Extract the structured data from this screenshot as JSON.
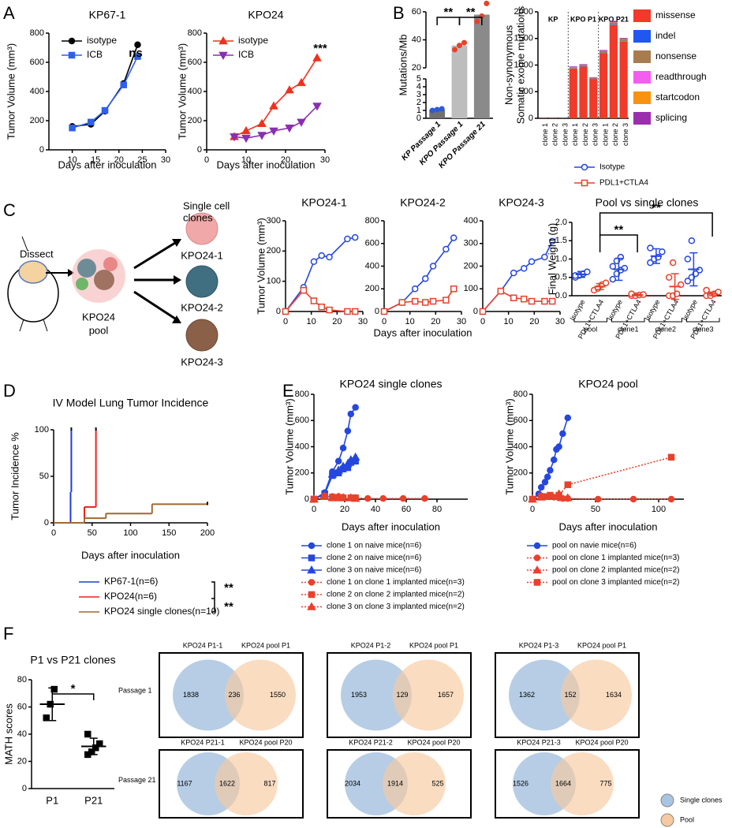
{
  "panels": [
    "A",
    "B",
    "C",
    "D",
    "E",
    "F"
  ],
  "chart_data": [
    {
      "type": "line",
      "title": "KP67-1",
      "xlabel": "Days after inoculation",
      "ylabel": "Tumor Volume (mm³)",
      "x": [
        10,
        14,
        17,
        21,
        24
      ],
      "xlim": [
        5,
        30
      ],
      "xticks": [
        10,
        15,
        20,
        25,
        30
      ],
      "ylim": [
        0,
        800
      ],
      "yticks": [
        0,
        200,
        400,
        600,
        800
      ],
      "series": [
        {
          "name": "isotype",
          "color": "#000000",
          "marker": "circle",
          "values": [
            160,
            175,
            265,
            455,
            720
          ]
        },
        {
          "name": "ICB",
          "color": "#2f5ff0",
          "marker": "square",
          "values": [
            150,
            190,
            270,
            445,
            640
          ]
        }
      ],
      "annotations": [
        "ns"
      ]
    },
    {
      "type": "line",
      "title": "KPO24",
      "xlabel": "Days after inoculation",
      "ylabel": "Tumor Volume (mm³)",
      "x": [
        7,
        10,
        14,
        17,
        21,
        24,
        28
      ],
      "xlim": [
        0,
        30
      ],
      "xticks": [
        0,
        10,
        20,
        30
      ],
      "ylim": [
        0,
        800
      ],
      "yticks": [
        0,
        200,
        400,
        600,
        800
      ],
      "series": [
        {
          "name": "isotype",
          "color": "#f0301e",
          "marker": "triangle",
          "values": [
            90,
            130,
            180,
            300,
            410,
            460,
            630
          ]
        },
        {
          "name": "ICB",
          "color": "#8a2fb0",
          "marker": "triangle-down",
          "values": [
            90,
            80,
            100,
            130,
            150,
            190,
            300
          ]
        }
      ],
      "annotations": [
        "***"
      ]
    },
    {
      "type": "bar",
      "ylabel": "Mutations/Mb",
      "categories": [
        "KP Passage 1",
        "KPO Passage 1",
        "KPO Passage 21"
      ],
      "values": [
        1.1,
        36,
        58
      ],
      "points": [
        [
          1.0,
          1.1,
          1.2
        ],
        [
          33,
          36,
          38
        ],
        [
          53,
          57,
          66
        ]
      ],
      "colors": [
        "#707070",
        "#bdbdbd",
        "#8a8a8a"
      ],
      "point_colors": [
        "#2d5bd6",
        "#e8412c",
        "#e8412c"
      ],
      "ylim": [
        0,
        60
      ],
      "yticks": [
        0,
        1,
        2,
        3,
        4,
        5,
        20,
        40,
        60
      ],
      "annotations": [
        "**",
        "**"
      ]
    },
    {
      "type": "stacked_bar",
      "ylabel": [
        "Non-synonymous",
        "Somatic exome mutations"
      ],
      "categories": [
        "clone 1",
        "clone 2",
        "clone 3",
        "clone 1",
        "clone 2",
        "clone 3",
        "clone 1",
        "clone 2",
        "clone 3"
      ],
      "groups": [
        "KP",
        "KPO P1",
        "KPO P21"
      ],
      "ylim": [
        0,
        2000
      ],
      "yticks": [
        0,
        500,
        1000,
        1500,
        2000
      ],
      "series": [
        {
          "name": "missense",
          "color": "#f03a2a",
          "values": [
            3,
            3,
            3,
            930,
            970,
            735,
            1220,
            1750,
            1440
          ]
        },
        {
          "name": "indel",
          "color": "#1f57f0",
          "values": [
            0,
            0,
            0,
            6,
            6,
            5,
            8,
            10,
            8
          ]
        },
        {
          "name": "nonsense",
          "color": "#a87c4f",
          "values": [
            1,
            1,
            1,
            22,
            24,
            18,
            30,
            40,
            35
          ]
        },
        {
          "name": "readthrough",
          "color": "#f35ef0",
          "values": [
            0,
            0,
            0,
            2,
            2,
            2,
            3,
            3,
            3
          ]
        },
        {
          "name": "startcodon",
          "color": "#f7930f",
          "values": [
            0,
            0,
            0,
            2,
            2,
            2,
            3,
            3,
            3
          ]
        },
        {
          "name": "splicing",
          "color": "#9b2fae",
          "values": [
            1,
            1,
            1,
            12,
            13,
            10,
            18,
            24,
            20
          ]
        }
      ]
    },
    {
      "type": "line",
      "title": "KPO24-1",
      "ylabel": "Tumor Volume (mm³)",
      "x": [
        0,
        7,
        11,
        14,
        17,
        24,
        27
      ],
      "xlim": [
        0,
        30
      ],
      "xticks": [
        0,
        10,
        20,
        30
      ],
      "ylim": [
        0,
        300
      ],
      "yticks": [
        0,
        100,
        200,
        300
      ],
      "series": [
        {
          "name": "Isotype",
          "color": "#2547e0",
          "marker": "circle-open",
          "values": [
            0,
            80,
            165,
            185,
            180,
            240,
            245
          ]
        },
        {
          "name": "PDL1+CTLA4",
          "color": "#e8412c",
          "marker": "square-open",
          "values": [
            0,
            70,
            35,
            15,
            5,
            0,
            0
          ]
        }
      ]
    },
    {
      "type": "line",
      "title": "KPO24-2",
      "xlabel": "Days after inoculation",
      "x": [
        0,
        7,
        12,
        16,
        19,
        24,
        27
      ],
      "xlim": [
        0,
        30
      ],
      "xticks": [
        0,
        10,
        20,
        30
      ],
      "ylim": [
        0,
        800
      ],
      "yticks": [
        0,
        200,
        400,
        600,
        800
      ],
      "series": [
        {
          "color": "#2547e0",
          "marker": "circle-open",
          "values": [
            0,
            80,
            200,
            290,
            400,
            550,
            650
          ]
        },
        {
          "color": "#e8412c",
          "marker": "square-open",
          "values": [
            0,
            80,
            90,
            80,
            90,
            100,
            200
          ]
        }
      ]
    },
    {
      "type": "line",
      "title": "KPO24-3",
      "x": [
        0,
        7,
        12,
        16,
        19,
        24,
        27
      ],
      "xlim": [
        0,
        30
      ],
      "xticks": [
        0,
        10,
        20,
        30
      ],
      "ylim": [
        0,
        400
      ],
      "yticks": [
        0,
        100,
        200,
        300,
        400
      ],
      "series": [
        {
          "color": "#2547e0",
          "marker": "circle-open",
          "values": [
            0,
            90,
            170,
            190,
            220,
            240,
            310
          ]
        },
        {
          "color": "#e8412c",
          "marker": "square-open",
          "values": [
            0,
            90,
            60,
            55,
            45,
            45,
            45
          ]
        }
      ]
    },
    {
      "type": "dot",
      "title": "Pool vs single clones",
      "ylabel": "Final Weight (g)",
      "categories": [
        "Isotype",
        "PDL1+CTLA4",
        "Isotype",
        "PDL1+CTLA4",
        "Isotype",
        "PDL1+CTLA4",
        "Isotype",
        "PDL1+CTLA4"
      ],
      "groups": [
        "pool",
        "clone1",
        "clone2",
        "clone3"
      ],
      "values": [
        0.58,
        0.25,
        0.72,
        0.02,
        1.08,
        0.25,
        0.72,
        0.05
      ],
      "errors": [
        0.08,
        0.08,
        0.3,
        0.02,
        0.2,
        0.35,
        0.45,
        0.05
      ],
      "points": [
        [
          0.5,
          0.55,
          0.6,
          0.65,
          0.55
        ],
        [
          0.15,
          0.2,
          0.3,
          0.35
        ],
        [
          0.45,
          0.6,
          0.7,
          0.75,
          0.8,
          0.95,
          1.05
        ],
        [
          0,
          0,
          0.02,
          0.03,
          0.05
        ],
        [
          0.9,
          1.0,
          1.05,
          1.2,
          1.3
        ],
        [
          0,
          0,
          0.05,
          0.3,
          0.5,
          0.9
        ],
        [
          0.4,
          0.5,
          0.6,
          0.7,
          1.0,
          1.5
        ],
        [
          0,
          0,
          0.05,
          0.1,
          0.15
        ]
      ],
      "colors": [
        "#2547e0",
        "#e8412c"
      ],
      "marker": "circle-open",
      "ylim": [
        0,
        2
      ],
      "yticks": [
        {
          "value": 0,
          "label": "0.0"
        },
        0.5,
        {
          "value": 1,
          "label": "1.0"
        },
        1.5,
        {
          "value": 2,
          "label": "2.0"
        }
      ],
      "annotations": [
        "**",
        "**"
      ]
    },
    {
      "type": "step",
      "title": "IV Model Lung Tumor Incidence",
      "xlabel": "Days after inoculation",
      "ylabel": "Tumor Incidence %",
      "xlim": [
        0,
        200
      ],
      "xticks": [
        0,
        50,
        100,
        150,
        200
      ],
      "ylim": [
        0,
        100
      ],
      "yticks": [
        0,
        50,
        100
      ],
      "series": [
        {
          "name": "KP67-1(n=6)",
          "color": "#1f3fd6",
          "x": [
            0,
            22,
            23
          ],
          "values": [
            0,
            33,
            100
          ]
        },
        {
          "name": "KPO24(n=6)",
          "color": "#e8251b",
          "x": [
            0,
            40,
            55
          ],
          "values": [
            0,
            17,
            100
          ]
        },
        {
          "name": "KPO24 single clones(n=10)",
          "color": "#a0692e",
          "x": [
            0,
            40,
            68,
            128,
            200
          ],
          "values": [
            0,
            5,
            10,
            20,
            20
          ]
        }
      ],
      "annotations": [
        "**",
        "**"
      ]
    },
    {
      "type": "line",
      "title": "KPO24 single clones",
      "xlabel": "Days after inoculation",
      "ylabel": "Tumor Volume (mm³)",
      "xlim": [
        0,
        100
      ],
      "xticks": [
        0,
        20,
        40,
        60,
        80
      ],
      "ylim": [
        0,
        800
      ],
      "yticks": [
        0,
        200,
        400,
        600,
        800
      ],
      "series": [
        {
          "name": "clone 1 on naive mice(n=6)",
          "color": "#2547e0",
          "marker": "circle",
          "x": [
            0,
            7,
            12,
            16,
            19,
            22,
            24,
            27
          ],
          "values": [
            0,
            50,
            210,
            290,
            390,
            520,
            650,
            700
          ]
        },
        {
          "name": "clone 2 on naive mice(n=6)",
          "color": "#2547e0",
          "marker": "square",
          "x": [
            0,
            7,
            12,
            16,
            19,
            22,
            24,
            27
          ],
          "values": [
            0,
            40,
            180,
            200,
            230,
            240,
            280,
            290
          ]
        },
        {
          "name": "clone 3 on naive mice(n=6)",
          "color": "#2547e0",
          "marker": "triangle",
          "x": [
            0,
            7,
            12,
            16,
            19,
            22,
            24,
            27
          ],
          "values": [
            0,
            40,
            190,
            220,
            250,
            270,
            300,
            320
          ]
        },
        {
          "name": "clone 1 on clone 1 implanted mice(n=3)",
          "color": "#e8412c",
          "marker": "circle",
          "dash": true,
          "x": [
            0,
            7,
            12,
            16,
            19,
            24,
            27,
            35,
            45,
            58,
            72
          ],
          "values": [
            0,
            25,
            20,
            20,
            15,
            10,
            10,
            5,
            5,
            5,
            5
          ]
        },
        {
          "name": "clone 2 on clone 2 implanted mice(n=2)",
          "color": "#e8412c",
          "marker": "square",
          "dash": true,
          "x": [
            0,
            7,
            12,
            16,
            19,
            24,
            27
          ],
          "values": [
            0,
            20,
            15,
            10,
            10,
            10,
            10
          ]
        },
        {
          "name": "clone 3 on clone 3 implanted mice(n=2)",
          "color": "#e8412c",
          "marker": "triangle",
          "dash": true,
          "x": [
            0,
            7,
            12,
            16,
            19,
            24,
            27
          ],
          "values": [
            0,
            20,
            10,
            15,
            10,
            10,
            5
          ]
        }
      ]
    },
    {
      "type": "line",
      "title": "KPO24 pool",
      "xlabel": "Days after inoculation",
      "ylabel": "Tumor Volume (mm³)",
      "xlim": [
        0,
        120
      ],
      "xticks": [
        0,
        50,
        100
      ],
      "ylim": [
        0,
        800
      ],
      "yticks": [
        0,
        200,
        400,
        600,
        800
      ],
      "series": [
        {
          "name": "pool on navie mice(n=6)",
          "color": "#2547e0",
          "marker": "circle",
          "x": [
            0,
            5,
            7,
            10,
            12,
            14,
            17,
            19,
            21,
            24,
            28
          ],
          "values": [
            0,
            40,
            90,
            130,
            170,
            220,
            300,
            380,
            400,
            500,
            620
          ]
        },
        {
          "name": "pool on clone 1 implanted mice(n=3)",
          "color": "#e8412c",
          "marker": "circle",
          "dash": true,
          "x": [
            0,
            7,
            10,
            14,
            17,
            21,
            24,
            28,
            52,
            80,
            110
          ],
          "values": [
            0,
            25,
            20,
            25,
            15,
            10,
            5,
            5,
            0,
            0,
            0
          ]
        },
        {
          "name": "pool on clone 2 implanted mice(n=2)",
          "color": "#e8412c",
          "marker": "triangle",
          "dash": true,
          "x": [
            0,
            7,
            14,
            21,
            28
          ],
          "values": [
            0,
            15,
            20,
            40,
            10
          ]
        },
        {
          "name": "pool on clone 3 implanted mice(n=2)",
          "color": "#e8412c",
          "marker": "square",
          "dash": true,
          "x": [
            0,
            7,
            14,
            21,
            28,
            110
          ],
          "values": [
            0,
            20,
            30,
            30,
            110,
            320
          ]
        }
      ]
    },
    {
      "type": "dot",
      "title": "P1 vs P21 clones",
      "ylabel": "MATH scores",
      "categories": [
        "P1",
        "P21"
      ],
      "values": [
        62,
        31
      ],
      "errors": [
        12,
        6
      ],
      "points": [
        [
          52,
          62,
          73
        ],
        [
          25,
          27,
          30,
          33,
          40
        ]
      ],
      "colors": [
        "#000000"
      ],
      "marker": "square",
      "ylim": [
        0,
        80
      ],
      "yticks": [
        0,
        20,
        40,
        60,
        80
      ],
      "annotations": [
        "*"
      ]
    }
  ],
  "diagram": {
    "dissect": "Dissect",
    "single_cell": [
      "Single cell",
      "clones"
    ],
    "pool": [
      "KPO24",
      "pool"
    ],
    "clones": [
      "KPO24-1",
      "KPO24-2",
      "KPO24-3"
    ]
  },
  "venn": {
    "rows": [
      {
        "label": "Passage 1",
        "diagrams": [
          {
            "left": "KPO24 P1-1",
            "right": "KPO24 pool P1",
            "counts": [
              "1838",
              "236",
              "1550"
            ]
          },
          {
            "left": "KPO24 P1-2",
            "right": "KPO24 pool P1",
            "counts": [
              "1953",
              "129",
              "1657"
            ]
          },
          {
            "left": "KPO24 P1-3",
            "right": "KPO24 pool P1",
            "counts": [
              "1362",
              "152",
              "1634"
            ]
          }
        ]
      },
      {
        "label": "Passage 21",
        "diagrams": [
          {
            "left": "KPO24 P21-1",
            "right": "KPO24 pool P20",
            "counts": [
              "1167",
              "1622",
              "817"
            ]
          },
          {
            "left": "KPO24 P21-2",
            "right": "KPO24 pool P20",
            "counts": [
              "2034",
              "1914",
              "525"
            ]
          },
          {
            "left": "KPO24 P21-3",
            "right": "KPO24 pool P20",
            "counts": [
              "1526",
              "1664",
              "775"
            ]
          }
        ]
      }
    ],
    "legend": [
      "Single clones",
      "Pool"
    ]
  }
}
